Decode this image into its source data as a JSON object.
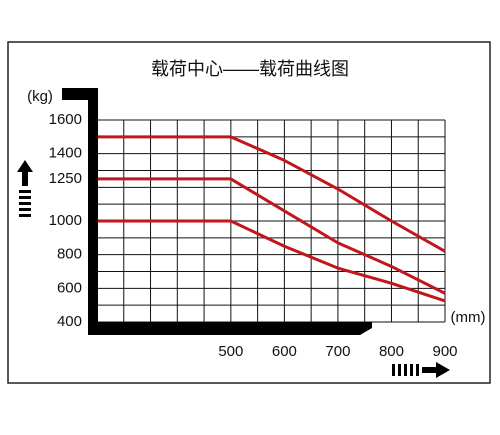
{
  "chart_data": {
    "type": "line",
    "title": "载荷中心——载荷曲线图",
    "x_label": "(mm)",
    "y_label": "(kg)",
    "xlim": [
      250,
      900
    ],
    "ylim": [
      400,
      1600
    ],
    "xticks": [
      500,
      600,
      700,
      800,
      900
    ],
    "yticks": [
      400,
      600,
      800,
      1000,
      1250,
      1400,
      1600
    ],
    "x_grid": [
      250,
      300,
      350,
      400,
      450,
      500,
      550,
      600,
      650,
      700,
      750,
      800,
      850,
      900
    ],
    "y_grid": [
      400,
      500,
      600,
      700,
      800,
      900,
      1000,
      1100,
      1200,
      1300,
      1400,
      1500,
      1600
    ],
    "x": [
      250,
      500,
      600,
      700,
      800,
      900
    ],
    "series": [
      {
        "color": "#c0161c",
        "values": [
          1500,
          1500,
          1360,
          1190,
          1000,
          820
        ]
      },
      {
        "color": "#c0161c",
        "values": [
          1250,
          1250,
          1060,
          870,
          730,
          570
        ]
      },
      {
        "color": "#c0161c",
        "values": [
          1000,
          1000,
          850,
          720,
          630,
          525
        ]
      }
    ]
  }
}
